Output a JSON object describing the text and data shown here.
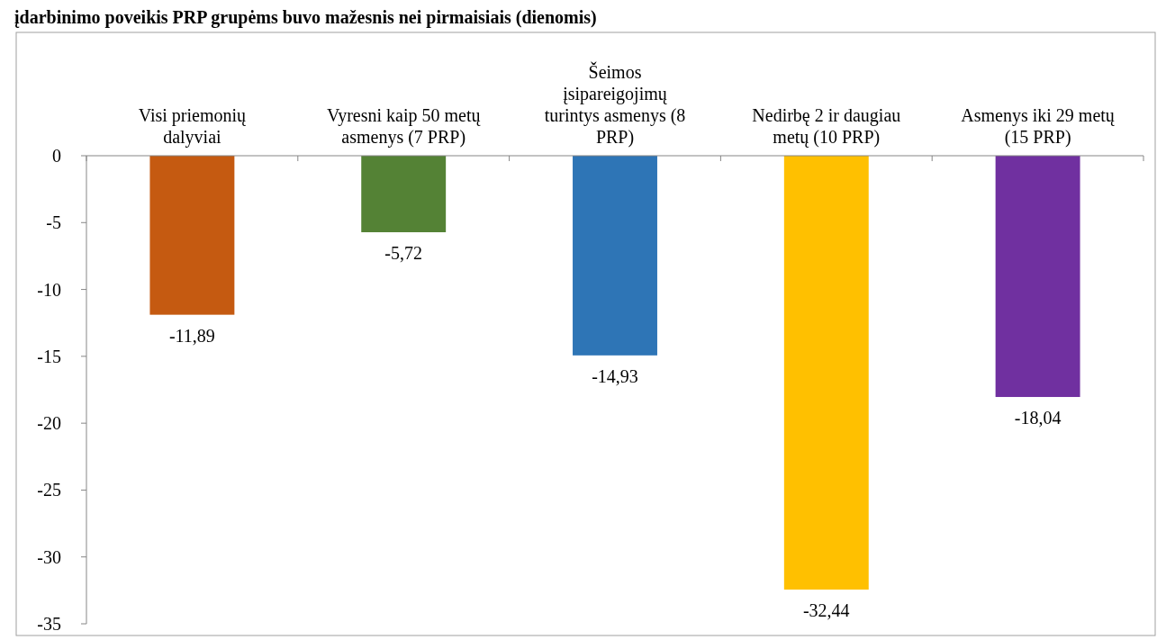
{
  "chart_data": {
    "type": "bar",
    "title": "įdarbinimo poveikis PRP grupėms buvo mažesnis nei pirmaisiais (dienomis)",
    "categories": [
      "Visi priemonių dalyviai",
      "Vyresni kaip 50 metų asmenys (7 PRP)",
      "Šeimos įsipareigojimų turintys asmenys (8 PRP)",
      "Nedirbę 2 ir daugiau metų  (10 PRP)",
      "Asmenys iki 29 metų (15 PRP)"
    ],
    "values": [
      -11.89,
      -5.72,
      -14.93,
      -32.44,
      -18.04
    ],
    "value_labels": [
      "-11,89",
      "-5,72",
      "-14,93",
      "-32,44",
      "-18,04"
    ],
    "colors": [
      "#c55a11",
      "#548235",
      "#2e75b6",
      "#ffc000",
      "#7030a0"
    ],
    "ylim": [
      -35,
      0
    ],
    "yticks": [
      0,
      -5,
      -10,
      -15,
      -20,
      -25,
      -30,
      -35
    ],
    "grid": false
  }
}
